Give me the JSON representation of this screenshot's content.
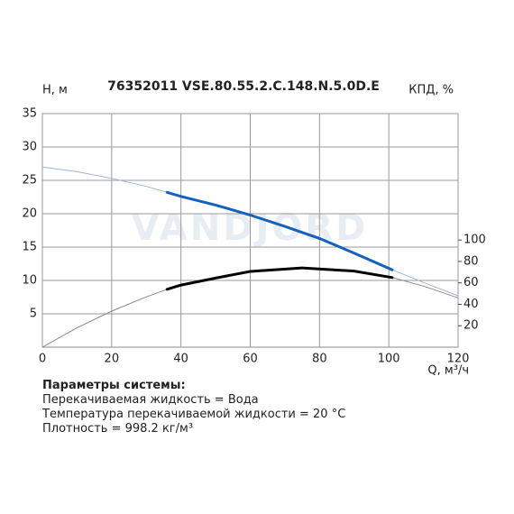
{
  "chart_data": {
    "type": "line",
    "title": "76352011 VSE.80.55.2.C.148.N.5.0D.E",
    "y_label": "H, м",
    "y2_label": "КПД, %",
    "x_label": "Q, м³/ч",
    "watermark": "VANDJORD",
    "xlim": [
      0,
      120
    ],
    "xticks": [
      0,
      20,
      40,
      60,
      80,
      100,
      120
    ],
    "ylim": [
      0,
      35
    ],
    "yticks": [
      5,
      10,
      15,
      20,
      25,
      30,
      35
    ],
    "y2lim": [
      0,
      218
    ],
    "y2ticks": [
      20,
      40,
      60,
      80,
      100
    ],
    "grid": true,
    "series": [
      {
        "color": "#9db6d9",
        "width": 1,
        "x": [
          0,
          10,
          20,
          30,
          36,
          50,
          60,
          70,
          80,
          90,
          101,
          110,
          120
        ],
        "values": [
          27,
          26.3,
          25.3,
          24.1,
          23.2,
          21.3,
          19.8,
          18.1,
          16.3,
          14.1,
          11.6,
          9.7,
          7.7
        ]
      },
      {
        "color": "#1560bd",
        "width": 3,
        "x": [
          36,
          40,
          50,
          60,
          70,
          80,
          90,
          101
        ],
        "values": [
          23.2,
          22.6,
          21.3,
          19.8,
          18.1,
          16.3,
          14.1,
          11.6
        ]
      },
      {
        "color": "#8a8a8a",
        "width": 1,
        "axis": "y2",
        "x": [
          0,
          10,
          20,
          30,
          36,
          50,
          60,
          75,
          90,
          101,
          110,
          120
        ],
        "values": [
          0,
          18,
          33.7,
          47,
          54,
          64.5,
          70.7,
          74,
          71,
          65,
          57,
          46
        ]
      },
      {
        "color": "#000000",
        "width": 3,
        "axis": "y2",
        "x": [
          36,
          40,
          50,
          60,
          75,
          90,
          101
        ],
        "values": [
          54,
          58,
          64.5,
          70.7,
          74,
          71,
          65
        ]
      }
    ]
  },
  "parameters": {
    "heading": "Параметры системы:",
    "lines": [
      "Перекачиваемая жидкость = Вода",
      "Температура перекачиваемой жидкости = 20 °C",
      "Плотность = 998.2 кг/м³"
    ]
  }
}
